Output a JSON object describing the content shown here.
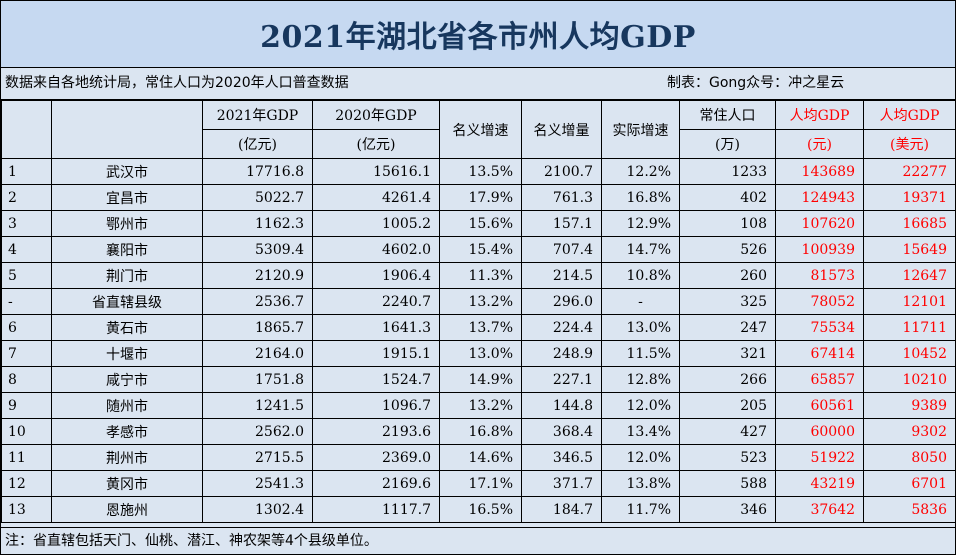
{
  "title": "2021年湖北省各市州人均GDP",
  "meta": {
    "source": "数据来自各地统计局，常住人口为2020年人口普查数据",
    "author": "制表：Gong众号：冲之星云"
  },
  "headers": {
    "gdp2021": "2021年GDP",
    "gdp2021_unit": "(亿元)",
    "gdp2020": "2020年GDP",
    "gdp2020_unit": "(亿元)",
    "nominal_growth": "名义增速",
    "nominal_increase": "名义增量",
    "real_growth": "实际增速",
    "population": "常住人口",
    "population_unit": "(万)",
    "per_capita_cny": "人均GDP",
    "per_capita_cny_unit": "(元)",
    "per_capita_usd": "人均GDP",
    "per_capita_usd_unit": "(美元)"
  },
  "rows": [
    {
      "rank": "1",
      "city": "武汉市",
      "gdp2021": "17716.8",
      "gdp2020": "15616.1",
      "nominal_growth": "13.5%",
      "nominal_increase": "2100.7",
      "real_growth": "12.2%",
      "population": "1233",
      "per_capita_cny": "143689",
      "per_capita_usd": "22277"
    },
    {
      "rank": "2",
      "city": "宜昌市",
      "gdp2021": "5022.7",
      "gdp2020": "4261.4",
      "nominal_growth": "17.9%",
      "nominal_increase": "761.3",
      "real_growth": "16.8%",
      "population": "402",
      "per_capita_cny": "124943",
      "per_capita_usd": "19371"
    },
    {
      "rank": "3",
      "city": "鄂州市",
      "gdp2021": "1162.3",
      "gdp2020": "1005.2",
      "nominal_growth": "15.6%",
      "nominal_increase": "157.1",
      "real_growth": "12.9%",
      "population": "108",
      "per_capita_cny": "107620",
      "per_capita_usd": "16685"
    },
    {
      "rank": "4",
      "city": "襄阳市",
      "gdp2021": "5309.4",
      "gdp2020": "4602.0",
      "nominal_growth": "15.4%",
      "nominal_increase": "707.4",
      "real_growth": "14.7%",
      "population": "526",
      "per_capita_cny": "100939",
      "per_capita_usd": "15649"
    },
    {
      "rank": "5",
      "city": "荆门市",
      "gdp2021": "2120.9",
      "gdp2020": "1906.4",
      "nominal_growth": "11.3%",
      "nominal_increase": "214.5",
      "real_growth": "10.8%",
      "population": "260",
      "per_capita_cny": "81573",
      "per_capita_usd": "12647"
    },
    {
      "rank": "-",
      "city": "省直辖县级",
      "gdp2021": "2536.7",
      "gdp2020": "2240.7",
      "nominal_growth": "13.2%",
      "nominal_increase": "296.0",
      "real_growth": "-",
      "population": "325",
      "per_capita_cny": "78052",
      "per_capita_usd": "12101"
    },
    {
      "rank": "6",
      "city": "黄石市",
      "gdp2021": "1865.7",
      "gdp2020": "1641.3",
      "nominal_growth": "13.7%",
      "nominal_increase": "224.4",
      "real_growth": "13.0%",
      "population": "247",
      "per_capita_cny": "75534",
      "per_capita_usd": "11711"
    },
    {
      "rank": "7",
      "city": "十堰市",
      "gdp2021": "2164.0",
      "gdp2020": "1915.1",
      "nominal_growth": "13.0%",
      "nominal_increase": "248.9",
      "real_growth": "11.5%",
      "population": "321",
      "per_capita_cny": "67414",
      "per_capita_usd": "10452"
    },
    {
      "rank": "8",
      "city": "咸宁市",
      "gdp2021": "1751.8",
      "gdp2020": "1524.7",
      "nominal_growth": "14.9%",
      "nominal_increase": "227.1",
      "real_growth": "12.8%",
      "population": "266",
      "per_capita_cny": "65857",
      "per_capita_usd": "10210"
    },
    {
      "rank": "9",
      "city": "随州市",
      "gdp2021": "1241.5",
      "gdp2020": "1096.7",
      "nominal_growth": "13.2%",
      "nominal_increase": "144.8",
      "real_growth": "12.0%",
      "population": "205",
      "per_capita_cny": "60561",
      "per_capita_usd": "9389"
    },
    {
      "rank": "10",
      "city": "孝感市",
      "gdp2021": "2562.0",
      "gdp2020": "2193.6",
      "nominal_growth": "16.8%",
      "nominal_increase": "368.4",
      "real_growth": "13.4%",
      "population": "427",
      "per_capita_cny": "60000",
      "per_capita_usd": "9302"
    },
    {
      "rank": "11",
      "city": "荆州市",
      "gdp2021": "2715.5",
      "gdp2020": "2369.0",
      "nominal_growth": "14.6%",
      "nominal_increase": "346.5",
      "real_growth": "12.0%",
      "population": "523",
      "per_capita_cny": "51922",
      "per_capita_usd": "8050"
    },
    {
      "rank": "12",
      "city": "黄冈市",
      "gdp2021": "2541.3",
      "gdp2020": "2169.6",
      "nominal_growth": "17.1%",
      "nominal_increase": "371.7",
      "real_growth": "13.8%",
      "population": "588",
      "per_capita_cny": "43219",
      "per_capita_usd": "6701"
    },
    {
      "rank": "13",
      "city": "恩施州",
      "gdp2021": "1302.4",
      "gdp2020": "1117.7",
      "nominal_growth": "16.5%",
      "nominal_increase": "184.7",
      "real_growth": "11.7%",
      "population": "346",
      "per_capita_cny": "37642",
      "per_capita_usd": "5836"
    }
  ],
  "note": "注：省直辖包括天门、仙桃、潜江、神农架等4个县级单位。"
}
